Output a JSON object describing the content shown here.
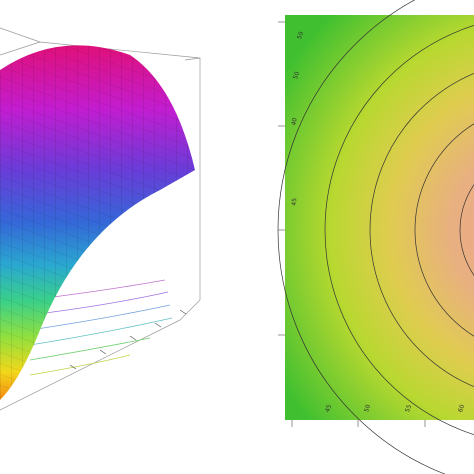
{
  "contour_plot": {
    "contour_labels": [
      "50",
      "50",
      "40",
      "45",
      "45",
      "50",
      "55",
      "60"
    ]
  }
}
